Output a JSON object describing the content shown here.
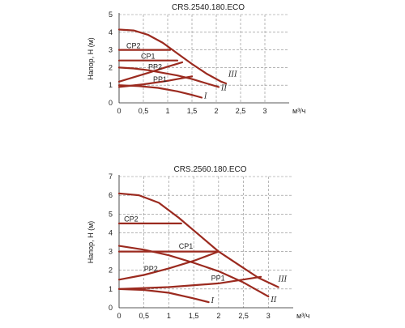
{
  "colors": {
    "curve": "#9b2a1f"
  },
  "chart_data": [
    {
      "type": "line",
      "title": "CRS.2540.180.ECO",
      "ylabel": "Напор, Н (м)",
      "xunit": "м³/ч",
      "xlim": [
        0,
        3.5
      ],
      "ylim": [
        0,
        5
      ],
      "xticks": [
        0,
        0.5,
        1,
        1.5,
        2,
        2.5,
        3
      ],
      "xtick_labels": [
        "0",
        "0,5",
        "1",
        "1,5",
        "2",
        "2,5",
        "3"
      ],
      "yticks": [
        0,
        1,
        2,
        3,
        4,
        5
      ],
      "ytick_labels": [
        "0",
        "1",
        "2",
        "3",
        "4",
        "5"
      ],
      "grid": true,
      "series": [
        {
          "name": "III",
          "x": [
            0,
            0.3,
            0.6,
            0.9,
            1.2,
            1.5,
            1.8,
            2.1,
            2.2
          ],
          "y": [
            4.15,
            4.1,
            3.85,
            3.4,
            2.8,
            2.2,
            1.65,
            1.2,
            1.1
          ]
        },
        {
          "name": "II",
          "x": [
            0,
            0.3,
            0.6,
            0.9,
            1.2,
            1.5,
            1.8,
            2.05
          ],
          "y": [
            2.0,
            1.95,
            1.85,
            1.7,
            1.55,
            1.35,
            1.1,
            0.9
          ]
        },
        {
          "name": "I",
          "x": [
            0,
            0.4,
            0.8,
            1.2,
            1.5,
            1.7
          ],
          "y": [
            1.0,
            0.95,
            0.85,
            0.65,
            0.45,
            0.3
          ]
        },
        {
          "name": "CP2",
          "x": [
            0,
            1.05
          ],
          "y": [
            3.0,
            3.0
          ]
        },
        {
          "name": "CP1",
          "x": [
            0,
            1.2
          ],
          "y": [
            2.4,
            2.4
          ]
        },
        {
          "name": "PP2",
          "x": [
            0,
            0.6,
            1.0,
            1.3
          ],
          "y": [
            1.2,
            1.7,
            2.05,
            2.3
          ]
        },
        {
          "name": "PP1",
          "x": [
            0,
            0.5,
            1.0,
            1.5
          ],
          "y": [
            0.9,
            1.05,
            1.25,
            1.5
          ]
        }
      ],
      "labels": [
        {
          "text": "CP2",
          "x": 0.15,
          "y": 3.1,
          "style": "clabel"
        },
        {
          "text": "CP1",
          "x": 0.45,
          "y": 2.5,
          "style": "clabel"
        },
        {
          "text": "PP2",
          "x": 0.6,
          "y": 1.9,
          "style": "clabel"
        },
        {
          "text": "PP1",
          "x": 0.7,
          "y": 1.2,
          "style": "clabel"
        },
        {
          "text": "III",
          "x": 2.25,
          "y": 1.5,
          "style": "roman"
        },
        {
          "text": "II",
          "x": 2.1,
          "y": 0.7,
          "style": "roman"
        },
        {
          "text": "I",
          "x": 1.75,
          "y": 0.25,
          "style": "roman"
        }
      ]
    },
    {
      "type": "line",
      "title": "CRS.2560.180.ECO",
      "ylabel": "Напор, Н (м)",
      "xunit": "м³/ч",
      "xlim": [
        0,
        3.5
      ],
      "ylim": [
        0,
        7
      ],
      "xticks": [
        0,
        0.5,
        1,
        1.5,
        2,
        2.5,
        3
      ],
      "xtick_labels": [
        "0",
        "0,5",
        "1",
        "1,5",
        "2",
        "2,5",
        "3"
      ],
      "yticks": [
        0,
        1,
        2,
        3,
        4,
        5,
        6,
        7
      ],
      "ytick_labels": [
        "0",
        "1",
        "2",
        "3",
        "4",
        "5",
        "6",
        "7"
      ],
      "grid": true,
      "series": [
        {
          "name": "III",
          "x": [
            0,
            0.4,
            0.8,
            1.2,
            1.6,
            2.0,
            2.4,
            2.8,
            3.2
          ],
          "y": [
            6.1,
            6.0,
            5.6,
            4.8,
            3.9,
            3.0,
            2.3,
            1.6,
            1.1
          ]
        },
        {
          "name": "II",
          "x": [
            0,
            0.5,
            1.0,
            1.5,
            2.0,
            2.5,
            3.0
          ],
          "y": [
            3.3,
            3.1,
            2.8,
            2.4,
            1.95,
            1.35,
            0.6
          ]
        },
        {
          "name": "I",
          "x": [
            0,
            0.5,
            1.0,
            1.5,
            1.8
          ],
          "y": [
            1.0,
            0.95,
            0.8,
            0.5,
            0.3
          ]
        },
        {
          "name": "CP2",
          "x": [
            0,
            1.25
          ],
          "y": [
            4.5,
            4.5
          ]
        },
        {
          "name": "CP1",
          "x": [
            0,
            1.95
          ],
          "y": [
            3.0,
            3.0
          ]
        },
        {
          "name": "PP2",
          "x": [
            0,
            0.5,
            1.0,
            1.5,
            2.0
          ],
          "y": [
            1.5,
            1.75,
            2.1,
            2.5,
            3.0
          ]
        },
        {
          "name": "PP1",
          "x": [
            0,
            1.0,
            2.0,
            2.85
          ],
          "y": [
            1.0,
            1.1,
            1.3,
            1.65
          ]
        }
      ],
      "labels": [
        {
          "text": "CP2",
          "x": 0.1,
          "y": 4.6,
          "style": "clabel"
        },
        {
          "text": "CP1",
          "x": 1.2,
          "y": 3.15,
          "style": "clabel"
        },
        {
          "text": "PP2",
          "x": 0.5,
          "y": 1.95,
          "style": "clabel"
        },
        {
          "text": "PP1",
          "x": 1.85,
          "y": 1.45,
          "style": "clabel"
        },
        {
          "text": "III",
          "x": 3.2,
          "y": 1.4,
          "style": "roman"
        },
        {
          "text": "II",
          "x": 3.05,
          "y": 0.3,
          "style": "roman"
        },
        {
          "text": "I",
          "x": 1.85,
          "y": 0.25,
          "style": "roman"
        }
      ]
    }
  ]
}
